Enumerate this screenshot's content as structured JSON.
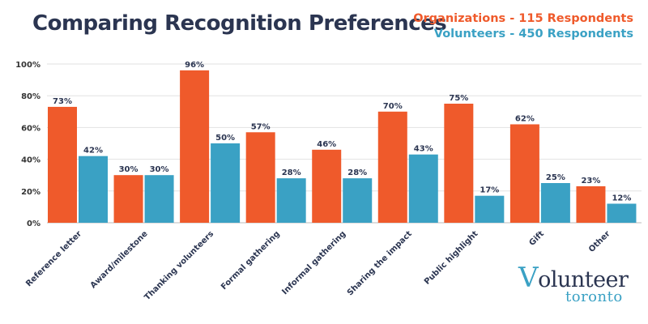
{
  "chart_data": {
    "type": "bar",
    "title": "Comparing Recognition Preferences",
    "categories": [
      "Reference letter",
      "Award/milestone",
      "Thanking volunteers",
      "Formal gathering",
      "Informal gathering",
      "Sharing the impact",
      "Public highlight",
      "Gift",
      "Other"
    ],
    "series": [
      {
        "name": "Organizations - 115 Respondents",
        "values": [
          73,
          30,
          96,
          57,
          46,
          70,
          75,
          62,
          23
        ],
        "color": "#ef5a2b"
      },
      {
        "name": "Volunteers - 450 Respondents",
        "values": [
          42,
          30,
          50,
          28,
          28,
          43,
          17,
          25,
          12
        ],
        "color": "#3aa1c4"
      }
    ],
    "yticks": [
      "0%",
      "20%",
      "40%",
      "60%",
      "80%",
      "100%"
    ],
    "ylim": [
      0,
      100
    ],
    "value_suffix": "%",
    "xlabel": "",
    "ylabel": "",
    "grid": true,
    "legend_position": "top-right"
  },
  "logo": {
    "main_initial": "V",
    "main_rest": "olunteer",
    "sub": "toronto"
  }
}
